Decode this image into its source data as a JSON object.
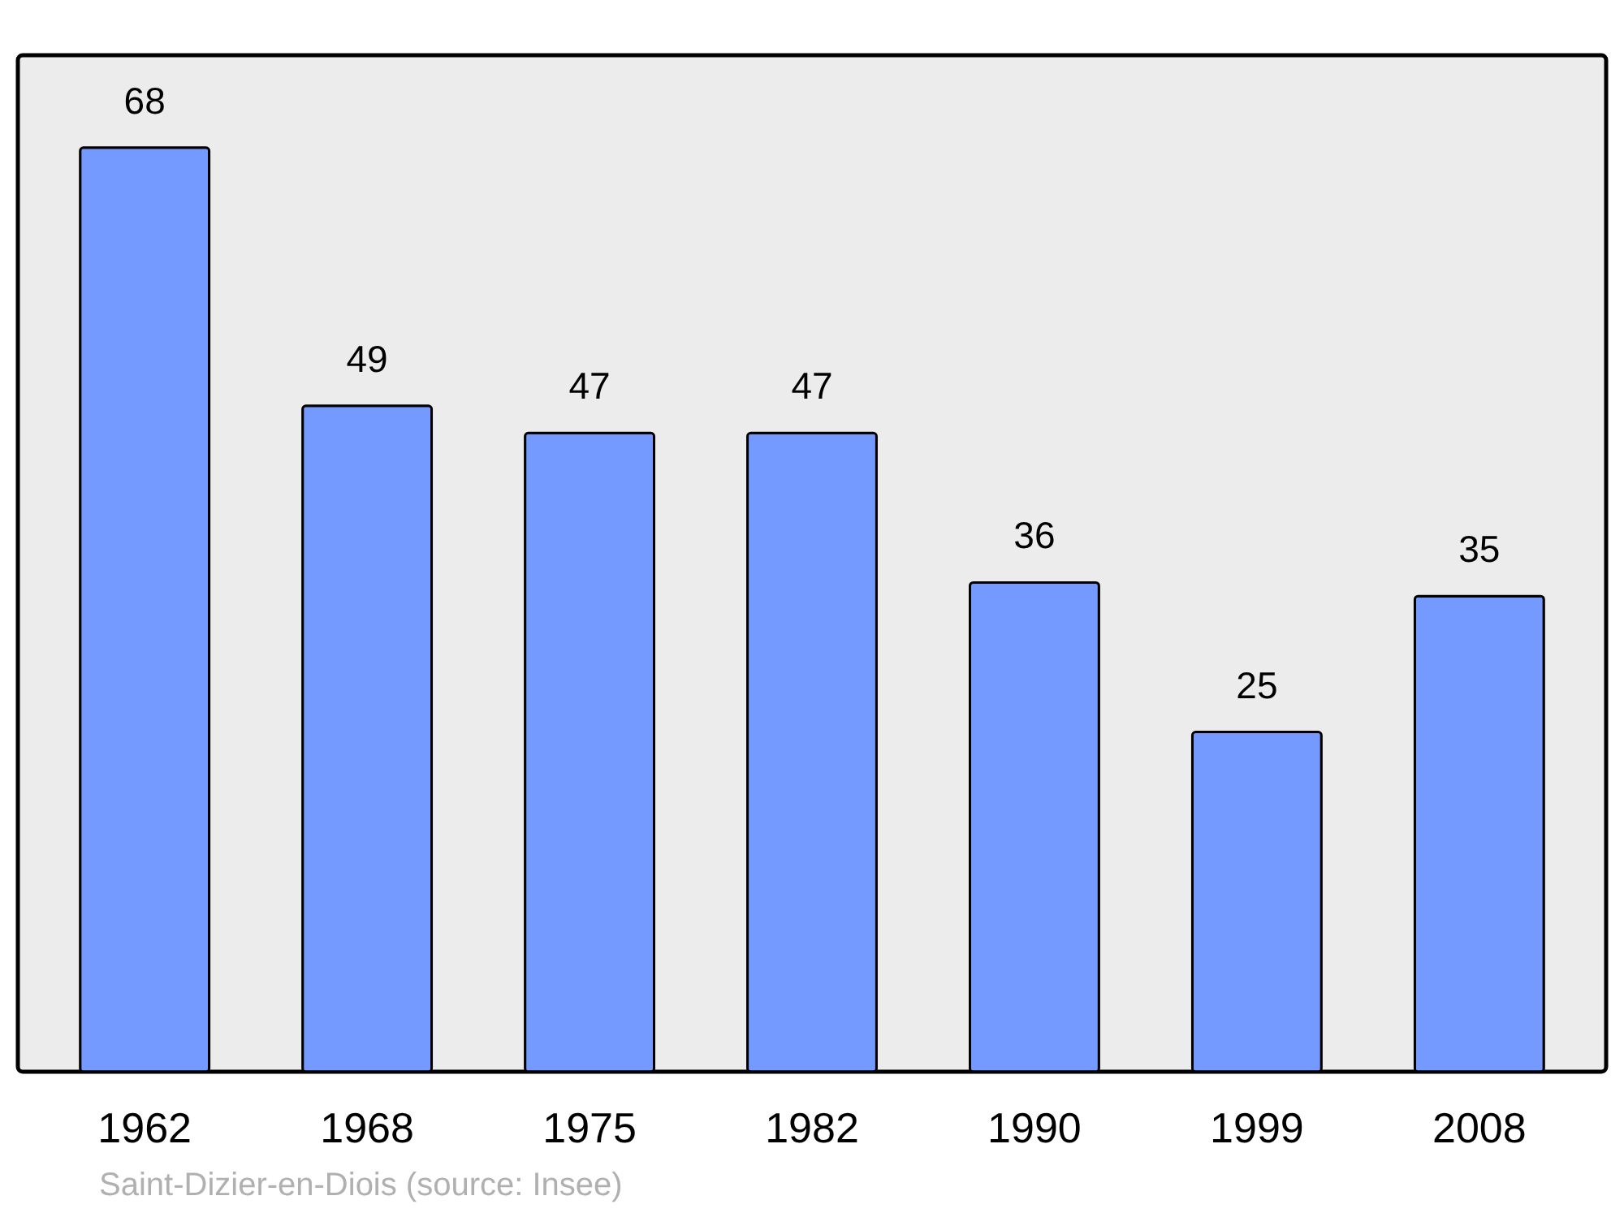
{
  "chart_data": {
    "type": "bar",
    "data_labels": true,
    "color": "#7499ff",
    "categories": [
      "1962",
      "1968",
      "1975",
      "1982",
      "1990",
      "1999",
      "2008"
    ],
    "values": [
      68,
      49,
      47,
      47,
      36,
      25,
      35
    ],
    "annotations": [
      "Saint-Dizier-en-Diois    (source: Insee)"
    ]
  }
}
